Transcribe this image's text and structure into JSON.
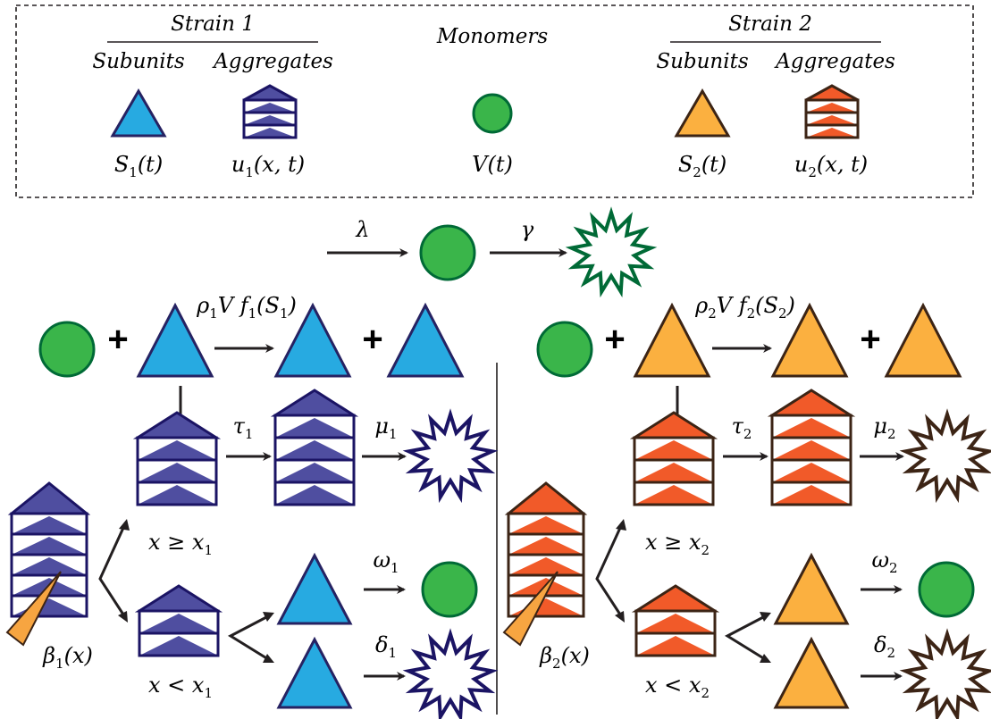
{
  "legend": {
    "strain1_title": "Strain 1",
    "strain2_title": "Strain 2",
    "subunits": "Subunits",
    "aggregates": "Aggregates",
    "monomers": "Monomers",
    "labels": {
      "S1": [
        "S",
        "1",
        "(t)"
      ],
      "u1": [
        "u",
        "1",
        "(x, t)"
      ],
      "V": [
        "V(t)"
      ],
      "S2": [
        "S",
        "2",
        "(t)"
      ],
      "u2": [
        "u",
        "2",
        "(x, t)"
      ]
    }
  },
  "rates": {
    "lambda": "λ",
    "gamma": "γ",
    "rho1": [
      "ρ",
      "1",
      "V f",
      "1",
      "(S",
      "1",
      ")"
    ],
    "rho2": [
      "ρ",
      "2",
      "V f",
      "2",
      "(S",
      "2",
      ")"
    ],
    "tau1": [
      "τ",
      "1"
    ],
    "tau2": [
      "τ",
      "2"
    ],
    "mu1": [
      "μ",
      "1"
    ],
    "mu2": [
      "μ",
      "2"
    ],
    "omega1": [
      "ω",
      "1"
    ],
    "omega2": [
      "ω",
      "2"
    ],
    "delta1": [
      "δ",
      "1"
    ],
    "delta2": [
      "δ",
      "2"
    ],
    "beta1": [
      "β",
      "1",
      "(x)"
    ],
    "beta2": [
      "β",
      "2",
      "(x)"
    ]
  },
  "conditions": {
    "geq1": [
      "x ≥ x",
      "1"
    ],
    "lt1": [
      "x < x",
      "1"
    ],
    "geq2": [
      "x ≥ x",
      "2"
    ],
    "lt2": [
      "x < x",
      "2"
    ]
  },
  "plus": "+",
  "colors": {
    "monomer_fill": "#3ab54a",
    "monomer_stroke": "#006a36",
    "s1_fill": "#27aae1",
    "s1_stroke": "#262262",
    "agg1_fill": "#4f4ea0",
    "agg1_stroke": "#1b1464",
    "s2_fill": "#fbb040",
    "s2_stroke": "#3c2415",
    "agg2_fill": "#f15a29",
    "agg2_stroke": "#3c2415",
    "death1_stroke": "#1b1464",
    "death2_stroke": "#3c2415",
    "death0_stroke": "#006a36",
    "wedge_fill": "#f7a541",
    "arrow": "#231f20"
  }
}
